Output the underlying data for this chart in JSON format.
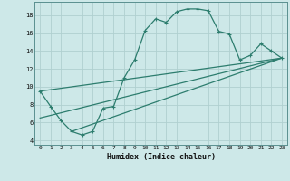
{
  "xlabel": "Humidex (Indice chaleur)",
  "bg_color": "#cde8e8",
  "grid_color": "#b0d0d0",
  "line_color": "#2d7d6e",
  "xlim": [
    -0.5,
    23.5
  ],
  "ylim": [
    3.5,
    19.5
  ],
  "xticks": [
    0,
    1,
    2,
    3,
    4,
    5,
    6,
    7,
    8,
    9,
    10,
    11,
    12,
    13,
    14,
    15,
    16,
    17,
    18,
    19,
    20,
    21,
    22,
    23
  ],
  "yticks": [
    4,
    6,
    8,
    10,
    12,
    14,
    16,
    18
  ],
  "series1": [
    [
      0,
      9.5
    ],
    [
      1,
      7.8
    ],
    [
      2,
      6.2
    ],
    [
      3,
      5.0
    ],
    [
      4,
      4.6
    ],
    [
      5,
      5.0
    ],
    [
      6,
      7.6
    ],
    [
      7,
      7.8
    ],
    [
      8,
      11.0
    ],
    [
      9,
      13.0
    ],
    [
      10,
      16.3
    ],
    [
      11,
      17.6
    ],
    [
      12,
      17.2
    ],
    [
      13,
      18.4
    ],
    [
      14,
      18.7
    ],
    [
      15,
      18.7
    ],
    [
      16,
      18.5
    ],
    [
      17,
      16.2
    ],
    [
      18,
      15.9
    ],
    [
      19,
      13.0
    ],
    [
      20,
      13.5
    ],
    [
      21,
      14.8
    ],
    [
      22,
      14.0
    ],
    [
      23,
      13.2
    ]
  ],
  "series2": [
    [
      0,
      6.5
    ],
    [
      23,
      13.2
    ]
  ],
  "series3": [
    [
      3,
      5.0
    ],
    [
      23,
      13.2
    ]
  ],
  "series4": [
    [
      0,
      9.5
    ],
    [
      23,
      13.2
    ]
  ]
}
